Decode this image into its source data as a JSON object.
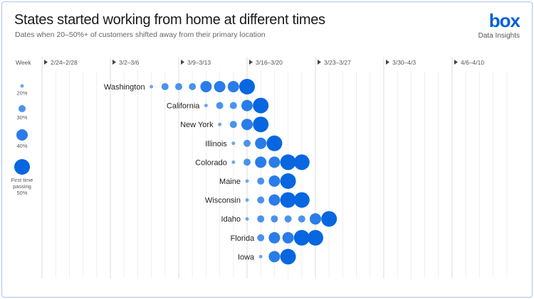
{
  "header": {
    "title": "States started working from home at different times",
    "subtitle": "Dates when 20–50%+ of customers shifted away from their primary location",
    "logo": "box",
    "logo_sub": "Data Insights"
  },
  "chart_data": {
    "type": "scatter",
    "title": "States started working from home at different times",
    "subtitle": "Dates when 20–50%+ of customers shifted away from their primary location",
    "x_axis_label": "Week",
    "weeks": [
      "2/24–2/28",
      "3/2–3/6",
      "3/9–3/13",
      "3/16–3/20",
      "3/23–3/27",
      "3/30–4/3",
      "4/6–4/10"
    ],
    "days": [
      "2/24",
      "2/25",
      "2/26",
      "2/27",
      "2/28",
      "3/2",
      "3/3",
      "3/4",
      "3/5",
      "3/6",
      "3/9",
      "3/10",
      "3/11",
      "3/12",
      "3/13",
      "3/16",
      "3/17",
      "3/18",
      "3/19",
      "3/20",
      "3/23",
      "3/24",
      "3/25",
      "3/26",
      "3/27",
      "3/30",
      "3/31",
      "4/1",
      "4/2",
      "4/3",
      "4/6",
      "4/7",
      "4/8",
      "4/9",
      "4/10"
    ],
    "legend": [
      {
        "level": 20,
        "label": "20%"
      },
      {
        "level": 30,
        "label": "30%"
      },
      {
        "level": 40,
        "label": "40%"
      },
      {
        "level": 50,
        "label": "First time passing 50%",
        "label_lines": [
          "First time",
          "passing",
          "50%"
        ]
      }
    ],
    "colors": {
      "20": "#6aa8f2",
      "30": "#4a92ee",
      "40": "#2a7ce8",
      "50": "#0866e0"
    },
    "series": [
      {
        "name": "Washington",
        "points": [
          [
            "3/5",
            20
          ],
          [
            "3/6",
            30
          ],
          [
            "3/9",
            30
          ],
          [
            "3/10",
            30
          ],
          [
            "3/11",
            40
          ],
          [
            "3/12",
            40
          ],
          [
            "3/13",
            40
          ],
          [
            "3/16",
            50
          ]
        ]
      },
      {
        "name": "California",
        "points": [
          [
            "3/11",
            20
          ],
          [
            "3/12",
            30
          ],
          [
            "3/13",
            30
          ],
          [
            "3/16",
            40
          ],
          [
            "3/17",
            50
          ]
        ]
      },
      {
        "name": "New York",
        "points": [
          [
            "3/12",
            20
          ],
          [
            "3/13",
            30
          ],
          [
            "3/16",
            40
          ],
          [
            "3/17",
            50
          ]
        ]
      },
      {
        "name": "Illinois",
        "points": [
          [
            "3/13",
            20
          ],
          [
            "3/16",
            30
          ],
          [
            "3/17",
            40
          ],
          [
            "3/18",
            50
          ]
        ]
      },
      {
        "name": "Colorado",
        "points": [
          [
            "3/13",
            20
          ],
          [
            "3/16",
            30
          ],
          [
            "3/17",
            40
          ],
          [
            "3/18",
            40
          ],
          [
            "3/19",
            50
          ],
          [
            "3/20",
            50
          ]
        ]
      },
      {
        "name": "Maine",
        "points": [
          [
            "3/16",
            20
          ],
          [
            "3/17",
            30
          ],
          [
            "3/18",
            40
          ],
          [
            "3/19",
            50
          ]
        ]
      },
      {
        "name": "Wisconsin",
        "points": [
          [
            "3/16",
            20
          ],
          [
            "3/17",
            30
          ],
          [
            "3/18",
            40
          ],
          [
            "3/19",
            50
          ],
          [
            "3/20",
            50
          ]
        ]
      },
      {
        "name": "Idaho",
        "points": [
          [
            "3/16",
            20
          ],
          [
            "3/17",
            30
          ],
          [
            "3/18",
            30
          ],
          [
            "3/19",
            30
          ],
          [
            "3/20",
            30
          ],
          [
            "3/23",
            40
          ],
          [
            "3/24",
            50
          ]
        ]
      },
      {
        "name": "Florida",
        "points": [
          [
            "3/17",
            30
          ],
          [
            "3/18",
            40
          ],
          [
            "3/19",
            40
          ],
          [
            "3/20",
            50
          ],
          [
            "3/23",
            50
          ]
        ]
      },
      {
        "name": "Iowa",
        "points": [
          [
            "3/17",
            20
          ],
          [
            "3/18",
            40
          ],
          [
            "3/19",
            50
          ]
        ]
      }
    ]
  }
}
